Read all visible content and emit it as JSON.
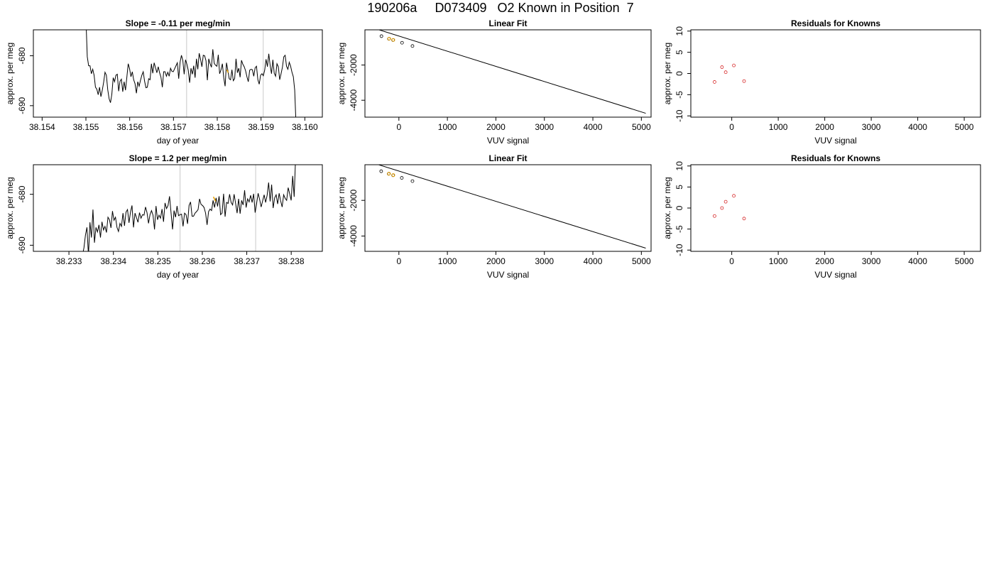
{
  "page": {
    "title": "190206a     D073409   O2 Known in Position  7"
  },
  "colors": {
    "line": "#000000",
    "vline": "#c8c8c8",
    "highlight": "#e69f00",
    "residual": "#d62728"
  },
  "chart_data": [
    {
      "type": "line",
      "title": "Slope =  -0.11  per meg/min",
      "xlabel": "day of year",
      "ylabel": "approx. per meg",
      "xlim": [
        38.1538,
        38.1604
      ],
      "ylim": [
        -692.3,
        -674.8
      ],
      "xticks": [
        "38.154",
        "38.155",
        "38.156",
        "38.157",
        "38.158",
        "38.159",
        "38.160"
      ],
      "xtick_values": [
        38.154,
        38.155,
        38.156,
        38.157,
        38.158,
        38.159,
        38.16
      ],
      "yticks": [
        "-680",
        "-690"
      ],
      "ytick_values": [
        -680,
        -690
      ],
      "vlines": [
        38.1573,
        38.15905
      ],
      "series_x_range": [
        38.155,
        38.1598
      ],
      "series_y": [
        -672.5,
        -680.2,
        -682.0,
        -682.0,
        -683.6,
        -682.7,
        -683.9,
        -686.3,
        -686.7,
        -687.8,
        -686.3,
        -688.2,
        -686.9,
        -685.3,
        -683.3,
        -683.9,
        -686.8,
        -688.6,
        -689.4,
        -687.7,
        -684.4,
        -685.2,
        -683.9,
        -683.7,
        -687.1,
        -685.1,
        -684.7,
        -687.2,
        -685.2,
        -686.9,
        -684.3,
        -681.6,
        -682.6,
        -684.2,
        -683.2,
        -684.8,
        -685.6,
        -687.5,
        -685.2,
        -686.1,
        -684.9,
        -683.9,
        -683.2,
        -685.1,
        -686.4,
        -686.3,
        -684.6,
        -684.8,
        -681.6,
        -683.5,
        -681.4,
        -682.4,
        -683.4,
        -682.2,
        -683.4,
        -684.3,
        -686.3,
        -683.2,
        -683.2,
        -684.1,
        -683.3,
        -684.1,
        -682.5,
        -683.1,
        -683.2,
        -682.6,
        -682.0,
        -681.4,
        -684.6,
        -681.3,
        -679.9,
        -680.9,
        -683.7,
        -680.8,
        -681.7,
        -682.9,
        -685.4,
        -682.5,
        -683.7,
        -682.0,
        -684.4,
        -680.6,
        -682.7,
        -679.5,
        -680.7,
        -682.2,
        -679.9,
        -680.0,
        -681.0,
        -684.9,
        -680.6,
        -681.6,
        -682.3,
        -678.7,
        -681.5,
        -681.9,
        -682.1,
        -679.8,
        -683.6,
        -682.8,
        -681.6,
        -684.4,
        -686.1,
        -681.4,
        -682.9,
        -684.6,
        -684.8,
        -682.8,
        -685.0,
        -684.6,
        -680.6,
        -683.4,
        -682.5,
        -684.3,
        -680.9,
        -681.7,
        -682.2,
        -683.0,
        -684.2,
        -685.2,
        -682.9,
        -682.7,
        -682.8,
        -684.1,
        -682.4,
        -682.1,
        -684.8,
        -685.7,
        -683.9,
        -683.6,
        -684.0,
        -682.9,
        -680.7,
        -682.2,
        -679.6,
        -681.9,
        -683.6,
        -680.8,
        -683.5,
        -684.1,
        -681.6,
        -682.2,
        -684.8,
        -683.6,
        -682.3,
        -680.2,
        -679.9,
        -682.1,
        -682.7,
        -681.3,
        -682.1,
        -683.3,
        -684.2,
        -686.9,
        -694.0
      ],
      "highlight_points": [
        [
          38.15822,
          -682.8
        ],
        [
          38.15825,
          -683.4
        ]
      ]
    },
    {
      "type": "scatter",
      "title": "Linear Fit",
      "xlabel": "VUV signal",
      "ylabel": "approx. per meg",
      "xlim": [
        -700,
        5200
      ],
      "ylim": [
        -4960,
        0
      ],
      "xticks": [
        "0",
        "1000",
        "2000",
        "3000",
        "4000",
        "5000"
      ],
      "xtick_values": [
        0,
        1000,
        2000,
        3000,
        4000,
        5000
      ],
      "yticks": [
        "-2000",
        "-4000"
      ],
      "ytick_values": [
        -2000,
        -4000
      ],
      "fit_line": [
        [
          -630,
          190
        ],
        [
          5090,
          -4740
        ]
      ],
      "points": [
        [
          -360,
          -360
        ],
        [
          -205,
          -510
        ],
        [
          -120,
          -580
        ],
        [
          65,
          -735
        ],
        [
          280,
          -920
        ]
      ],
      "highlight_points": [
        [
          -200,
          -505
        ],
        [
          -115,
          -575
        ]
      ]
    },
    {
      "type": "scatter",
      "title": "Residuals for Knowns",
      "xlabel": "VUV signal",
      "ylabel": "approx. per meg",
      "xlim": [
        -880,
        5350
      ],
      "ylim": [
        -10.3,
        10.3
      ],
      "xticks": [
        "0",
        "1000",
        "2000",
        "3000",
        "4000",
        "5000"
      ],
      "xtick_values": [
        0,
        1000,
        2000,
        3000,
        4000,
        5000
      ],
      "yticks": [
        "-10",
        "-5",
        "0",
        "5",
        "10"
      ],
      "ytick_values": [
        -10,
        -5,
        0,
        5,
        10
      ],
      "points": [
        [
          -370,
          -2.0
        ],
        [
          -210,
          1.5
        ],
        [
          -130,
          0.3
        ],
        [
          45,
          1.9
        ],
        [
          265,
          -1.8
        ]
      ]
    },
    {
      "type": "line",
      "title": "Slope =  1.2  per meg/min",
      "xlabel": "day of year",
      "ylabel": "approx. per meg",
      "xlim": [
        38.2322,
        38.2387
      ],
      "ylim": [
        -691.2,
        -674.2
      ],
      "xticks": [
        "38.233",
        "38.234",
        "38.235",
        "38.236",
        "38.237",
        "38.238"
      ],
      "xtick_values": [
        38.233,
        38.234,
        38.235,
        38.236,
        38.237,
        38.238
      ],
      "yticks": [
        "-680",
        "-690"
      ],
      "ytick_values": [
        -680,
        -690
      ],
      "vlines": [
        38.2355,
        38.2372
      ],
      "series_x_range": [
        38.233,
        38.2381
      ],
      "series_y": [
        -705.0,
        -703.0,
        -700.0,
        -698.0,
        -696.0,
        -694.0,
        -691.5,
        -693.0,
        -691.5,
        -692.0,
        -690.5,
        -688.0,
        -686.5,
        -692.0,
        -685.5,
        -688.5,
        -683.0,
        -689.5,
        -686.5,
        -687.4,
        -686.0,
        -688.5,
        -685.4,
        -687.0,
        -686.3,
        -687.5,
        -684.5,
        -685.0,
        -686.6,
        -683.3,
        -685.1,
        -684.5,
        -686.5,
        -687.3,
        -685.7,
        -686.3,
        -683.7,
        -686.2,
        -683.5,
        -683.0,
        -685.6,
        -683.5,
        -682.2,
        -686.5,
        -683.7,
        -684.6,
        -685.5,
        -683.6,
        -684.7,
        -684.0,
        -684.1,
        -682.5,
        -683.6,
        -685.7,
        -684.0,
        -683.2,
        -684.1,
        -686.9,
        -682.3,
        -685.0,
        -684.1,
        -684.7,
        -682.9,
        -685.4,
        -681.7,
        -682.8,
        -682.2,
        -680.4,
        -683.6,
        -686.9,
        -683.2,
        -684.5,
        -682.3,
        -684.2,
        -684.0,
        -683.9,
        -686.3,
        -683.7,
        -684.0,
        -685.8,
        -682.2,
        -681.5,
        -684.3,
        -684.3,
        -683.7,
        -683.4,
        -683.0,
        -680.9,
        -682.0,
        -682.2,
        -682.6,
        -683.7,
        -686.0,
        -683.4,
        -682.9,
        -683.2,
        -681.2,
        -682.6,
        -680.7,
        -682.4,
        -680.4,
        -684.0,
        -683.7,
        -679.9,
        -684.4,
        -681.6,
        -681.8,
        -680.0,
        -681.6,
        -682.1,
        -680.0,
        -681.8,
        -683.7,
        -680.9,
        -683.8,
        -681.2,
        -682.1,
        -679.2,
        -682.6,
        -680.9,
        -681.5,
        -680.2,
        -681.6,
        -679.9,
        -683.6,
        -681.8,
        -679.8,
        -681.0,
        -682.5,
        -681.3,
        -680.1,
        -681.6,
        -680.2,
        -677.7,
        -681.4,
        -678.1,
        -682.7,
        -680.7,
        -680.1,
        -681.9,
        -679.8,
        -681.3,
        -682.5,
        -680.1,
        -680.8,
        -681.2,
        -678.7,
        -679.9,
        -681.2,
        -676.4,
        -680.5,
        -672.4
      ],
      "highlight_points": [
        [
          38.23625,
          -680.5
        ],
        [
          38.2363,
          -681.4
        ]
      ]
    },
    {
      "type": "scatter",
      "title": "Linear Fit",
      "xlabel": "VUV signal",
      "ylabel": "approx. per meg",
      "xlim": [
        -700,
        5200
      ],
      "ylim": [
        -4860,
        0
      ],
      "xticks": [
        "0",
        "1000",
        "2000",
        "3000",
        "4000",
        "5000"
      ],
      "xtick_values": [
        0,
        1000,
        2000,
        3000,
        4000,
        5000
      ],
      "yticks": [
        "-2000",
        "-4000"
      ],
      "ytick_values": [
        -2000,
        -4000
      ],
      "fit_line": [
        [
          -630,
          180
        ],
        [
          5090,
          -4680
        ]
      ],
      "points": [
        [
          -365,
          -365
        ],
        [
          -210,
          -510
        ],
        [
          -120,
          -590
        ],
        [
          60,
          -740
        ],
        [
          280,
          -920
        ]
      ],
      "highlight_points": [
        [
          -205,
          -505
        ],
        [
          -115,
          -585
        ]
      ]
    },
    {
      "type": "scatter",
      "title": "Residuals for Knowns",
      "xlabel": "VUV signal",
      "ylabel": "approx. per meg",
      "xlim": [
        -880,
        5350
      ],
      "ylim": [
        -10.3,
        10.3
      ],
      "xticks": [
        "0",
        "1000",
        "2000",
        "3000",
        "4000",
        "5000"
      ],
      "xtick_values": [
        0,
        1000,
        2000,
        3000,
        4000,
        5000
      ],
      "yticks": [
        "-10",
        "-5",
        "0",
        "5",
        "10"
      ],
      "ytick_values": [
        -10,
        -5,
        0,
        5,
        10
      ],
      "points": [
        [
          -370,
          -1.9
        ],
        [
          -210,
          0.0
        ],
        [
          -130,
          1.5
        ],
        [
          45,
          2.9
        ],
        [
          265,
          -2.5
        ]
      ]
    }
  ]
}
